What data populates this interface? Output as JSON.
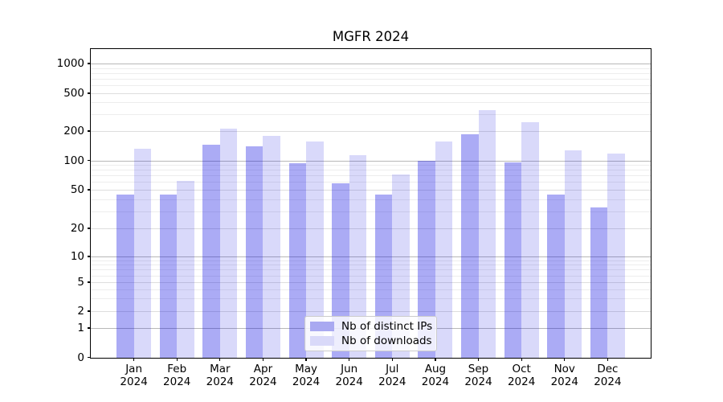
{
  "title": "MGFR 2024",
  "chart_data": {
    "type": "bar",
    "title": "MGFR 2024",
    "xlabel": "",
    "ylabel": "",
    "scale": "symlog",
    "grid": true,
    "legend_position": "lower center",
    "ylim": [
      0,
      1400
    ],
    "y_ticks": [
      0,
      1,
      2,
      5,
      10,
      20,
      50,
      100,
      200,
      500,
      1000
    ],
    "y_tick_labels": [
      "0",
      "1",
      "2",
      "5",
      "10",
      "20",
      "50",
      "100",
      "200",
      "500",
      "1000"
    ],
    "categories": [
      "Jan",
      "Feb",
      "Mar",
      "Apr",
      "May",
      "Jun",
      "Jul",
      "Aug",
      "Sep",
      "Oct",
      "Nov",
      "Dec"
    ],
    "year_label": "2024",
    "series": [
      {
        "name": "Nb of distinct IPs",
        "color": "rgba(10,10,225,0.34)",
        "legend_color": "#a9a9f1",
        "values": [
          45,
          45,
          144,
          140,
          93,
          58,
          45,
          100,
          184,
          96,
          45,
          33
        ]
      },
      {
        "name": "Nb of downloads",
        "color": "rgba(10,10,225,0.155)",
        "legend_color": "#d9d9f9",
        "values": [
          132,
          62,
          212,
          180,
          156,
          114,
          72,
          155,
          330,
          246,
          128,
          118
        ]
      }
    ],
    "colors": {
      "grid_major": "#b8b8b8",
      "grid_minor_labeled": "#dedede",
      "grid_minor": "#ededed",
      "axis": "#000000",
      "background": "#ffffff"
    }
  }
}
